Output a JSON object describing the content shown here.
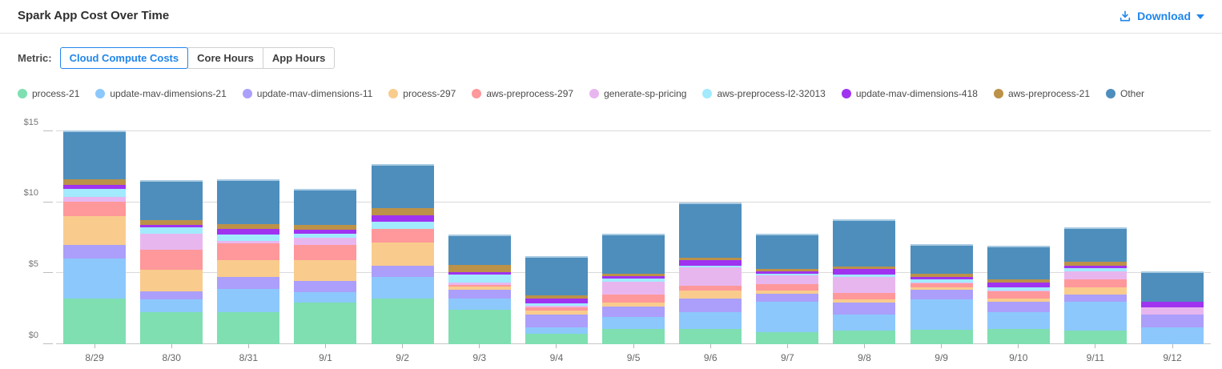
{
  "header": {
    "title": "Spark App Cost Over Time",
    "download_label": "Download"
  },
  "metric": {
    "label": "Metric:",
    "options": [
      {
        "label": "Cloud Compute Costs",
        "selected": true
      },
      {
        "label": "Core Hours",
        "selected": false
      },
      {
        "label": "App Hours",
        "selected": false
      }
    ]
  },
  "colors": {
    "accent": "#2186eb",
    "grid": "#d9d9d9",
    "axis_text": "#757575"
  },
  "chart_data": {
    "type": "bar",
    "stacked": true,
    "title": "Spark App Cost Over Time",
    "units": "USD",
    "grid": true,
    "legend_position": "top",
    "ylim": [
      0,
      15
    ],
    "ytick_values": [
      0,
      5,
      10,
      15
    ],
    "ytick_labels": [
      "$0",
      "$5",
      "$10",
      "$15"
    ],
    "categories": [
      "8/29",
      "8/30",
      "8/31",
      "9/1",
      "9/2",
      "9/3",
      "9/4",
      "9/5",
      "9/6",
      "9/7",
      "9/8",
      "9/9",
      "9/10",
      "9/11",
      "9/12"
    ],
    "series": [
      {
        "name": "process-21",
        "color": "#7fdfb1",
        "values": [
          3.2,
          2.26,
          2.26,
          2.92,
          3.24,
          2.45,
          0.76,
          1.09,
          1.09,
          0.85,
          0.98,
          1.04,
          1.09,
          0.98,
          0
        ]
      },
      {
        "name": "update-mav-dimensions-21",
        "color": "#8cc8fc",
        "values": [
          2.82,
          0.88,
          1.66,
          0.75,
          1.5,
          0.79,
          0.41,
          0.83,
          1.17,
          2.12,
          1.13,
          2.12,
          1.17,
          1.99,
          1.17
        ]
      },
      {
        "name": "update-mav-dimensions-11",
        "color": "#ab9ffb",
        "values": [
          0.95,
          0.59,
          0.82,
          0.81,
          0.77,
          0.62,
          0.94,
          0.71,
          0.98,
          0.61,
          0.81,
          0.7,
          0.71,
          0.51,
          0.94
        ]
      },
      {
        "name": "process-297",
        "color": "#f9cc8d",
        "values": [
          2.03,
          1.49,
          1.19,
          1.45,
          1.64,
          0.21,
          0.24,
          0.29,
          0.52,
          0.22,
          0.24,
          0.13,
          0.27,
          0.51,
          0
        ]
      },
      {
        "name": "aws-preprocess-297",
        "color": "#fe989a",
        "values": [
          1.03,
          1.41,
          1.18,
          1.07,
          1.0,
          0.13,
          0.25,
          0.56,
          0.38,
          0.43,
          0.45,
          0.28,
          0.49,
          0.57,
          0
        ]
      },
      {
        "name": "generate-sp-pricing",
        "color": "#e8b6ef",
        "values": [
          0.36,
          1.18,
          0.15,
          0.49,
          0,
          0.13,
          0.13,
          0.94,
          1.26,
          0.63,
          1.13,
          0.1,
          0.07,
          0.56,
          0.49
        ]
      },
      {
        "name": "aws-preprocess-l2-32013",
        "color": "#a2eafd",
        "values": [
          0.56,
          0.42,
          0.45,
          0.32,
          0.5,
          0.57,
          0.13,
          0.19,
          0.15,
          0.13,
          0.19,
          0.19,
          0.19,
          0.24,
          0
        ]
      },
      {
        "name": "update-mav-dimensions-418",
        "color": "#9f33f0",
        "values": [
          0.3,
          0.15,
          0.4,
          0.23,
          0.44,
          0.18,
          0.38,
          0.19,
          0.38,
          0.13,
          0.38,
          0.18,
          0.34,
          0.19,
          0.37
        ]
      },
      {
        "name": "aws-preprocess-21",
        "color": "#bc9148",
        "values": [
          0.36,
          0.38,
          0.36,
          0.34,
          0.51,
          0.53,
          0.19,
          0.19,
          0.19,
          0.19,
          0.18,
          0.25,
          0.23,
          0.25,
          0
        ]
      },
      {
        "name": "Other",
        "color": "#4d8ebd",
        "values": [
          3.45,
          2.82,
          3.14,
          2.56,
          3.12,
          2.13,
          2.78,
          2.82,
          3.89,
          2.5,
          3.31,
          2.07,
          2.38,
          2.44,
          2.15
        ]
      }
    ]
  }
}
